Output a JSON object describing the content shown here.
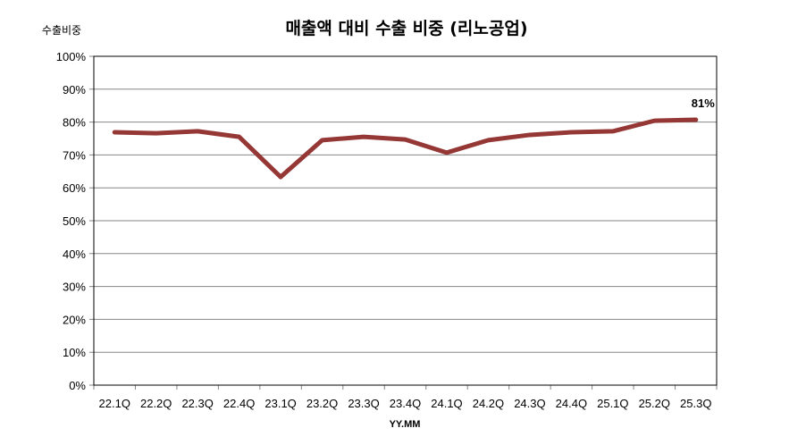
{
  "chart_data": {
    "type": "line",
    "title": "매출액 대비 수출 비중 (리노공업)",
    "ylabel": "수출비중",
    "xlabel": "YY.MM",
    "categories": [
      "22.1Q",
      "22.2Q",
      "22.3Q",
      "22.4Q",
      "23.1Q",
      "23.2Q",
      "23.3Q",
      "23.4Q",
      "24.1Q",
      "24.2Q",
      "24.3Q",
      "24.4Q",
      "25.1Q",
      "25.2Q",
      "25.3Q"
    ],
    "series": [
      {
        "name": "수출비중",
        "values": [
          76.9,
          76.6,
          77.2,
          75.5,
          63.3,
          74.5,
          75.5,
          74.7,
          70.7,
          74.5,
          76.1,
          76.9,
          77.2,
          80.4,
          80.7
        ],
        "color": "#953735"
      }
    ],
    "ylim": [
      0,
      100
    ],
    "yticks": [
      "0%",
      "10%",
      "20%",
      "30%",
      "40%",
      "50%",
      "60%",
      "70%",
      "80%",
      "90%",
      "100%"
    ],
    "grid": true,
    "legend": "none",
    "annotations": [
      {
        "category": "25.3Q",
        "text": "81%"
      }
    ]
  }
}
